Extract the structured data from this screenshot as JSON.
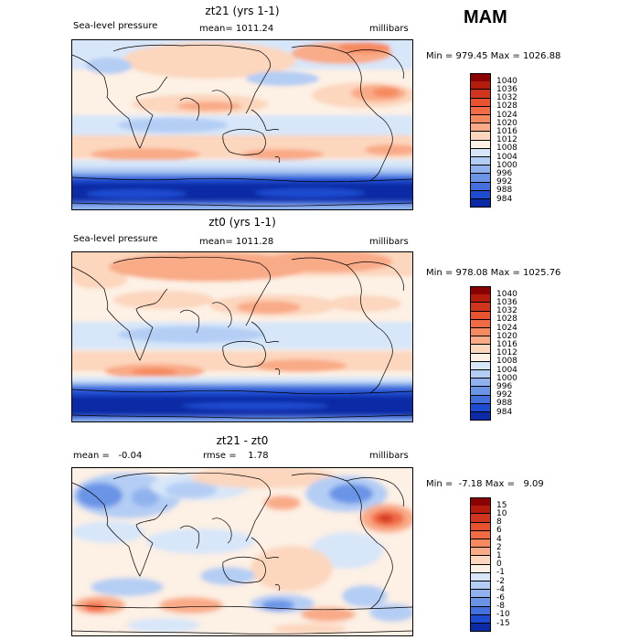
{
  "season": "MAM",
  "panels": [
    {
      "title": "zt21 (yrs 1-1)",
      "left_label": "Sea-level pressure",
      "center_label": "mean= 1011.24",
      "right_label": "millibars",
      "stats": "Min = 979.45 Max = 1026.88",
      "colorbar": {
        "labels": [
          "1040",
          "1036",
          "1032",
          "1028",
          "1024",
          "1020",
          "1016",
          "1012",
          "1008",
          "1004",
          "1000",
          "996",
          "992",
          "988",
          "984"
        ],
        "colors": [
          "#8b0000",
          "#b31c0d",
          "#d0361e",
          "#e9522e",
          "#f16b45",
          "#f5895f",
          "#f9aa86",
          "#fcd6bd",
          "#fdf0e4",
          "#d7e6f9",
          "#b3cdf4",
          "#8fb2ee",
          "#6a94e6",
          "#4370dc",
          "#1e4cd0",
          "#0c2aa6"
        ]
      }
    },
    {
      "title": "zt0 (yrs 1-1)",
      "left_label": "Sea-level pressure",
      "center_label": "mean= 1011.28",
      "right_label": "millibars",
      "stats": "Min = 978.08 Max = 1025.76",
      "colorbar": {
        "labels": [
          "1040",
          "1036",
          "1032",
          "1028",
          "1024",
          "1020",
          "1016",
          "1012",
          "1008",
          "1004",
          "1000",
          "996",
          "992",
          "988",
          "984"
        ],
        "colors": [
          "#8b0000",
          "#b31c0d",
          "#d0361e",
          "#e9522e",
          "#f16b45",
          "#f5895f",
          "#f9aa86",
          "#fcd6bd",
          "#fdf0e4",
          "#d7e6f9",
          "#b3cdf4",
          "#8fb2ee",
          "#6a94e6",
          "#4370dc",
          "#1e4cd0",
          "#0c2aa6"
        ]
      }
    },
    {
      "title": "zt21 - zt0",
      "left_label": "mean =   -0.04",
      "center_label": "rmse =    1.78",
      "right_label": "millibars",
      "stats": "Min =  -7.18 Max =   9.09",
      "colorbar": {
        "labels": [
          "15",
          "10",
          "8",
          "6",
          "4",
          "2",
          "1",
          "0",
          "-1",
          "-2",
          "-4",
          "-6",
          "-8",
          "-10",
          "-15"
        ],
        "colors": [
          "#8b0000",
          "#b31c0d",
          "#d0361e",
          "#e9522e",
          "#f16b45",
          "#f5895f",
          "#f9aa86",
          "#fcd6bd",
          "#fdf0e4",
          "#d7e6f9",
          "#b3cdf4",
          "#8fb2ee",
          "#6a94e6",
          "#4370dc",
          "#1e4cd0",
          "#0c2aa6"
        ]
      }
    }
  ]
}
